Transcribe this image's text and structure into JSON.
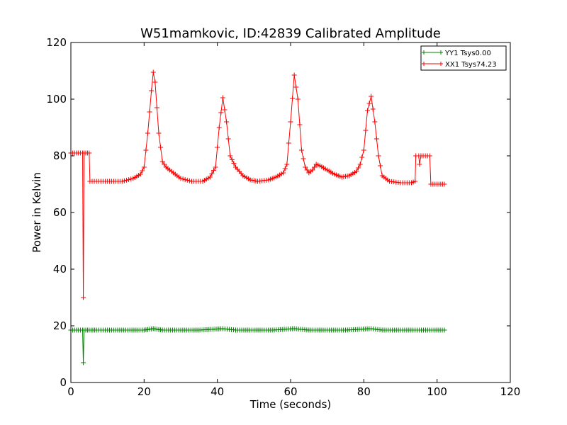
{
  "chart_data": {
    "type": "line",
    "title": "W51mamkovic, ID:42839 Calibrated Amplitude",
    "xlabel": "Time (seconds)",
    "ylabel": "Power in Kelvin",
    "xlim": [
      0,
      120
    ],
    "ylim": [
      0,
      120
    ],
    "xticks": [
      "0",
      "20",
      "40",
      "60",
      "80",
      "100",
      "120"
    ],
    "yticks": [
      "0",
      "20",
      "40",
      "60",
      "80",
      "100",
      "120"
    ],
    "grid": false,
    "legend_position": "top-right",
    "marker": "+",
    "series": [
      {
        "name": "YY1 Tsys0.00",
        "color": "#008000",
        "points": [
          [
            0,
            18.5
          ],
          [
            1,
            18.5
          ],
          [
            2,
            18.5
          ],
          [
            3.2,
            18.5
          ],
          [
            3.4,
            7
          ],
          [
            3.6,
            18.5
          ],
          [
            5,
            18.5
          ],
          [
            7,
            18.5
          ],
          [
            10,
            18.5
          ],
          [
            15,
            18.5
          ],
          [
            20,
            18.5
          ],
          [
            22.5,
            19
          ],
          [
            25,
            18.5
          ],
          [
            30,
            18.5
          ],
          [
            35,
            18.5
          ],
          [
            41.5,
            19
          ],
          [
            45,
            18.5
          ],
          [
            50,
            18.5
          ],
          [
            55,
            18.5
          ],
          [
            61,
            19
          ],
          [
            65,
            18.5
          ],
          [
            70,
            18.5
          ],
          [
            75,
            18.5
          ],
          [
            82,
            19
          ],
          [
            85,
            18.5
          ],
          [
            90,
            18.5
          ],
          [
            94,
            18.5
          ],
          [
            98,
            18.5
          ],
          [
            102,
            18.5
          ]
        ]
      },
      {
        "name": "XX1 Tsys74.23",
        "color": "#ff0000",
        "points": [
          [
            0,
            81
          ],
          [
            1,
            81
          ],
          [
            2,
            81
          ],
          [
            3.2,
            81
          ],
          [
            3.4,
            30
          ],
          [
            3.6,
            81
          ],
          [
            5,
            81
          ],
          [
            5.2,
            71
          ],
          [
            7,
            71
          ],
          [
            10,
            71
          ],
          [
            14,
            71
          ],
          [
            17,
            72
          ],
          [
            19,
            73.5
          ],
          [
            20,
            76
          ],
          [
            21,
            88
          ],
          [
            22,
            103
          ],
          [
            22.5,
            109.5
          ],
          [
            23,
            106
          ],
          [
            24,
            88
          ],
          [
            25,
            78
          ],
          [
            26,
            76
          ],
          [
            28,
            74
          ],
          [
            30,
            72
          ],
          [
            33,
            71
          ],
          [
            36,
            71
          ],
          [
            38,
            72.5
          ],
          [
            39.5,
            76
          ],
          [
            40.5,
            90
          ],
          [
            41.5,
            100.5
          ],
          [
            42.5,
            92
          ],
          [
            43.5,
            80
          ],
          [
            45,
            76
          ],
          [
            47,
            73
          ],
          [
            49,
            71.5
          ],
          [
            51,
            71
          ],
          [
            54,
            71.5
          ],
          [
            56,
            72.5
          ],
          [
            58,
            74
          ],
          [
            59,
            77
          ],
          [
            60,
            92
          ],
          [
            61,
            108.5
          ],
          [
            62,
            100
          ],
          [
            63,
            82
          ],
          [
            64,
            76
          ],
          [
            65,
            74
          ],
          [
            66,
            75
          ],
          [
            67,
            77
          ],
          [
            68,
            76.5
          ],
          [
            70,
            75
          ],
          [
            72,
            73.5
          ],
          [
            74,
            72.5
          ],
          [
            76,
            73
          ],
          [
            78,
            74.5
          ],
          [
            79,
            77
          ],
          [
            80,
            82
          ],
          [
            81,
            96
          ],
          [
            82,
            101
          ],
          [
            83,
            92
          ],
          [
            84,
            80
          ],
          [
            85,
            73
          ],
          [
            87,
            71
          ],
          [
            90,
            70.5
          ],
          [
            93,
            70.5
          ],
          [
            94,
            71
          ],
          [
            94.2,
            80
          ],
          [
            95,
            80
          ],
          [
            95.2,
            77
          ],
          [
            95.6,
            80
          ],
          [
            98,
            80
          ],
          [
            98.3,
            70
          ],
          [
            100,
            70
          ],
          [
            102,
            70
          ]
        ]
      }
    ]
  }
}
